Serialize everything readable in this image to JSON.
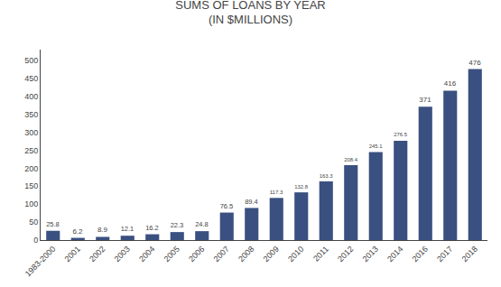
{
  "chart_data": {
    "type": "bar",
    "title": "SUMS OF LOANS BY YEAR",
    "subtitle": "(IN $MILLIONS)",
    "categories": [
      "1983-2000",
      "2001",
      "2002",
      "2003",
      "2004",
      "2005",
      "2006",
      "2007",
      "2008",
      "2009",
      "2010",
      "2011",
      "2012",
      "2013",
      "2014",
      "2016",
      "2017",
      "2018"
    ],
    "values": [
      25.8,
      6.2,
      8.9,
      12.1,
      16.2,
      22.3,
      24.8,
      76.5,
      89.4,
      117.3,
      132.8,
      163.3,
      208.4,
      245.1,
      276.5,
      371,
      416,
      476
    ],
    "color": "#3A5080",
    "ylim": [
      0,
      530
    ],
    "yticks": [
      0,
      50,
      100,
      150,
      200,
      250,
      300,
      350,
      400,
      450,
      500
    ],
    "grid": false,
    "data_labels": true
  }
}
